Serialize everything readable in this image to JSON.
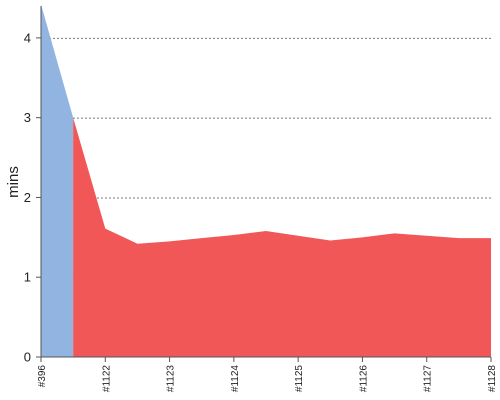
{
  "chart_data": {
    "type": "area",
    "title": "",
    "xlabel": "",
    "ylabel": "mins",
    "ylim": [
      0,
      4.4
    ],
    "y_ticks": [
      "0",
      "1",
      "2",
      "3",
      "4"
    ],
    "y_tick_values": [
      0,
      1,
      2,
      3,
      4
    ],
    "grid": "horizontal dashed",
    "x_labels": [
      "#396",
      "#1122",
      "#1123",
      "#1124",
      "#1125",
      "#1126",
      "#1127",
      "#1128"
    ],
    "x_label_positions": [
      0,
      1,
      2,
      3,
      4,
      5,
      6,
      7
    ],
    "series": [
      {
        "color": "#92b4e0",
        "x": [
          0,
          0.5,
          0.5,
          0
        ],
        "y": [
          4.42,
          3.0,
          0,
          0
        ]
      },
      {
        "color": "#f25757",
        "x": [
          0.5,
          1.0,
          1.5,
          2.0,
          2.5,
          3.0,
          3.5,
          4.0,
          4.5,
          5.0,
          5.5,
          6.0,
          6.5,
          7.0
        ],
        "y": [
          3.0,
          1.61,
          1.42,
          1.45,
          1.49,
          1.53,
          1.58,
          1.52,
          1.46,
          1.5,
          1.55,
          1.52,
          1.49,
          1.49
        ]
      }
    ]
  }
}
